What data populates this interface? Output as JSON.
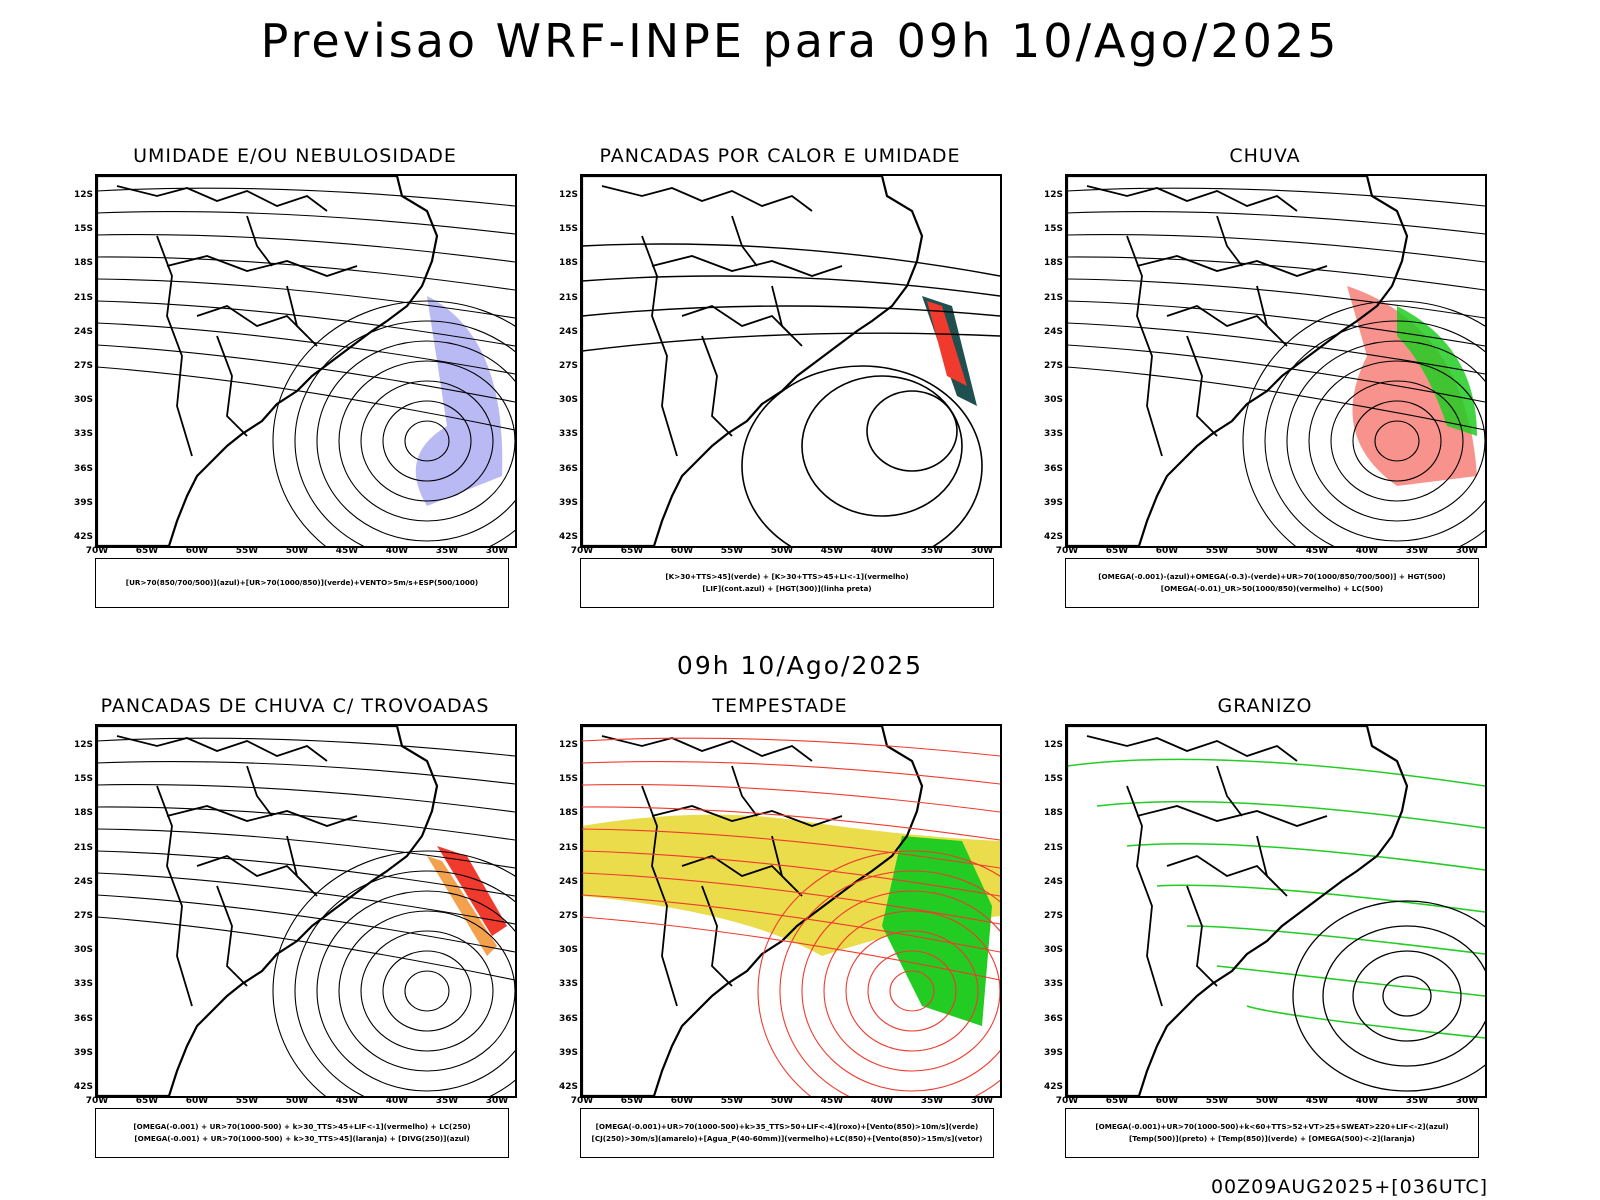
{
  "title": "Previsao WRF-INPE  para 09h 10/Ago/2025",
  "mid_time": "09h 10/Ago/2025",
  "footer": "00Z09AUG2025+[036UTC]",
  "y_ticks": [
    "12S",
    "15S",
    "18S",
    "21S",
    "24S",
    "27S",
    "30S",
    "33S",
    "36S",
    "39S",
    "42S"
  ],
  "x_ticks": [
    "70W",
    "65W",
    "60W",
    "55W",
    "50W",
    "45W",
    "40W",
    "35W",
    "30W"
  ],
  "colors": {
    "blue": "#3b55e6",
    "green": "#22cc22",
    "red": "#f03a2e",
    "orange": "#f08a20",
    "yellow": "#e6d62a",
    "dark_green": "#1f4f4f",
    "lavender": "#9b9bf0"
  },
  "panels": [
    {
      "title": "UMIDADE E/OU NEBULOSIDADE",
      "legend": [
        "[UR>70(850/700/500)](azul)+[UR>70(1000/850)](verde)+VENTO>5m/s+ESP(500/1000)"
      ]
    },
    {
      "title": "PANCADAS POR CALOR E UMIDADE",
      "legend": [
        "[K>30+TTS>45](verde) + [K>30+TTS>45+LI<-1](vermelho)",
        "[LIF](cont.azul) + [HGT(300)](linha preta)"
      ]
    },
    {
      "title": "CHUVA",
      "legend": [
        "[OMEGA(-0.001)-(azul)+OMEGA(-0.3)-(verde)+UR>70(1000/850/700/500)] + HGT(500)",
        "[OMEGA(-0.01)_UR>50(1000/850)(vermelho) + LC(500)"
      ]
    },
    {
      "title": "PANCADAS DE CHUVA C/ TROVOADAS",
      "legend": [
        "[OMEGA(-0.001) + UR>70(1000-500) + k>30_TTS>45+LIF<-1](vermelho) + LC(250)",
        "[OMEGA(-0.001) + UR>70(1000-500) + k>30_TTS>45](laranja) + [DIVG(250)](azul)"
      ]
    },
    {
      "title": "TEMPESTADE",
      "legend": [
        "[OMEGA(-0.001)+UR>70(1000-500)+k>35_TTS>50+LIF<-4](roxo)+[Vento(850)>10m/s](verde)",
        "[CJ(250)>30m/s](amarelo)+[Agua_P(40-60mm)](vermelho)+LC(850)+[Vento(850)>15m/s](vetor)"
      ]
    },
    {
      "title": "GRANIZO",
      "legend": [
        "[OMEGA(-0.001)+UR>70(1000-500)+k<60+TTS>52+VT>25+SWEAT>220+LIF<-2](azul)",
        "[Temp(500)](preto) + [Temp(850)](verde) + [OMEGA(500)<-2](laranja)"
      ]
    }
  ]
}
